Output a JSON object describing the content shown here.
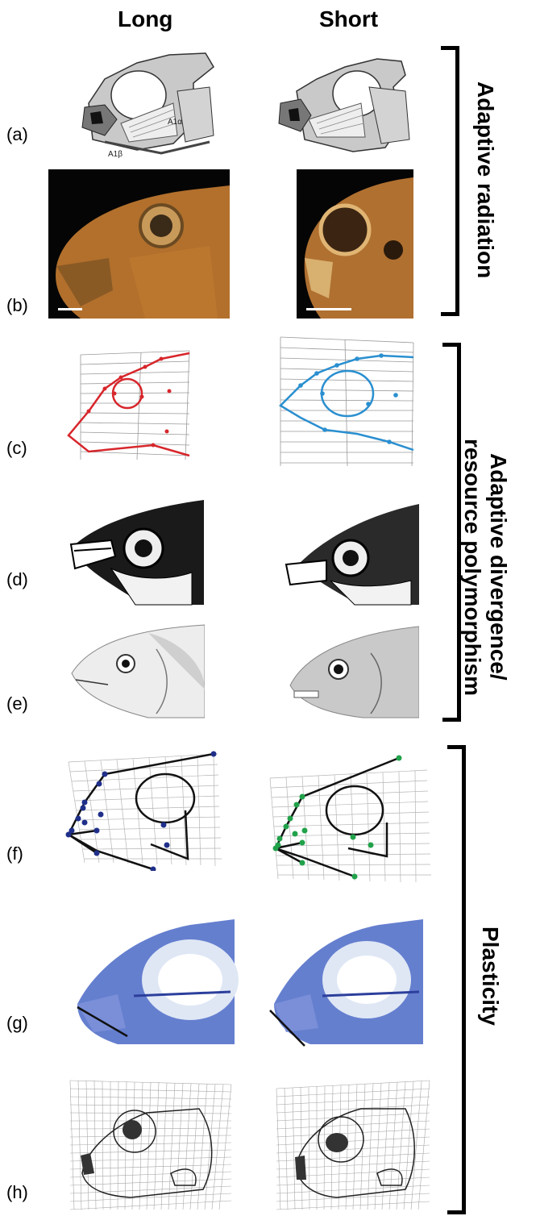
{
  "columns": {
    "long": "Long",
    "short": "Short"
  },
  "row_labels": [
    "(a)",
    "(b)",
    "(c)",
    "(d)",
    "(e)",
    "(f)",
    "(g)",
    "(h)"
  ],
  "panel_a": {
    "label_a1a": "A1α",
    "label_a1b": "A1β"
  },
  "groups": {
    "adaptive_radiation": "Adaptive radiation",
    "divergence_line1": "Adaptive divergence/",
    "divergence_line2": "resource polymorphism",
    "plasticity": "Plasticity"
  },
  "colors": {
    "red": "#d7262b",
    "blue": "#2a8fd0",
    "navy": "#1f2f8a",
    "green": "#21a24a",
    "photo_bg": "#050505",
    "fish_orange": "#b2702c",
    "stain_blue": "#4a69c7"
  }
}
